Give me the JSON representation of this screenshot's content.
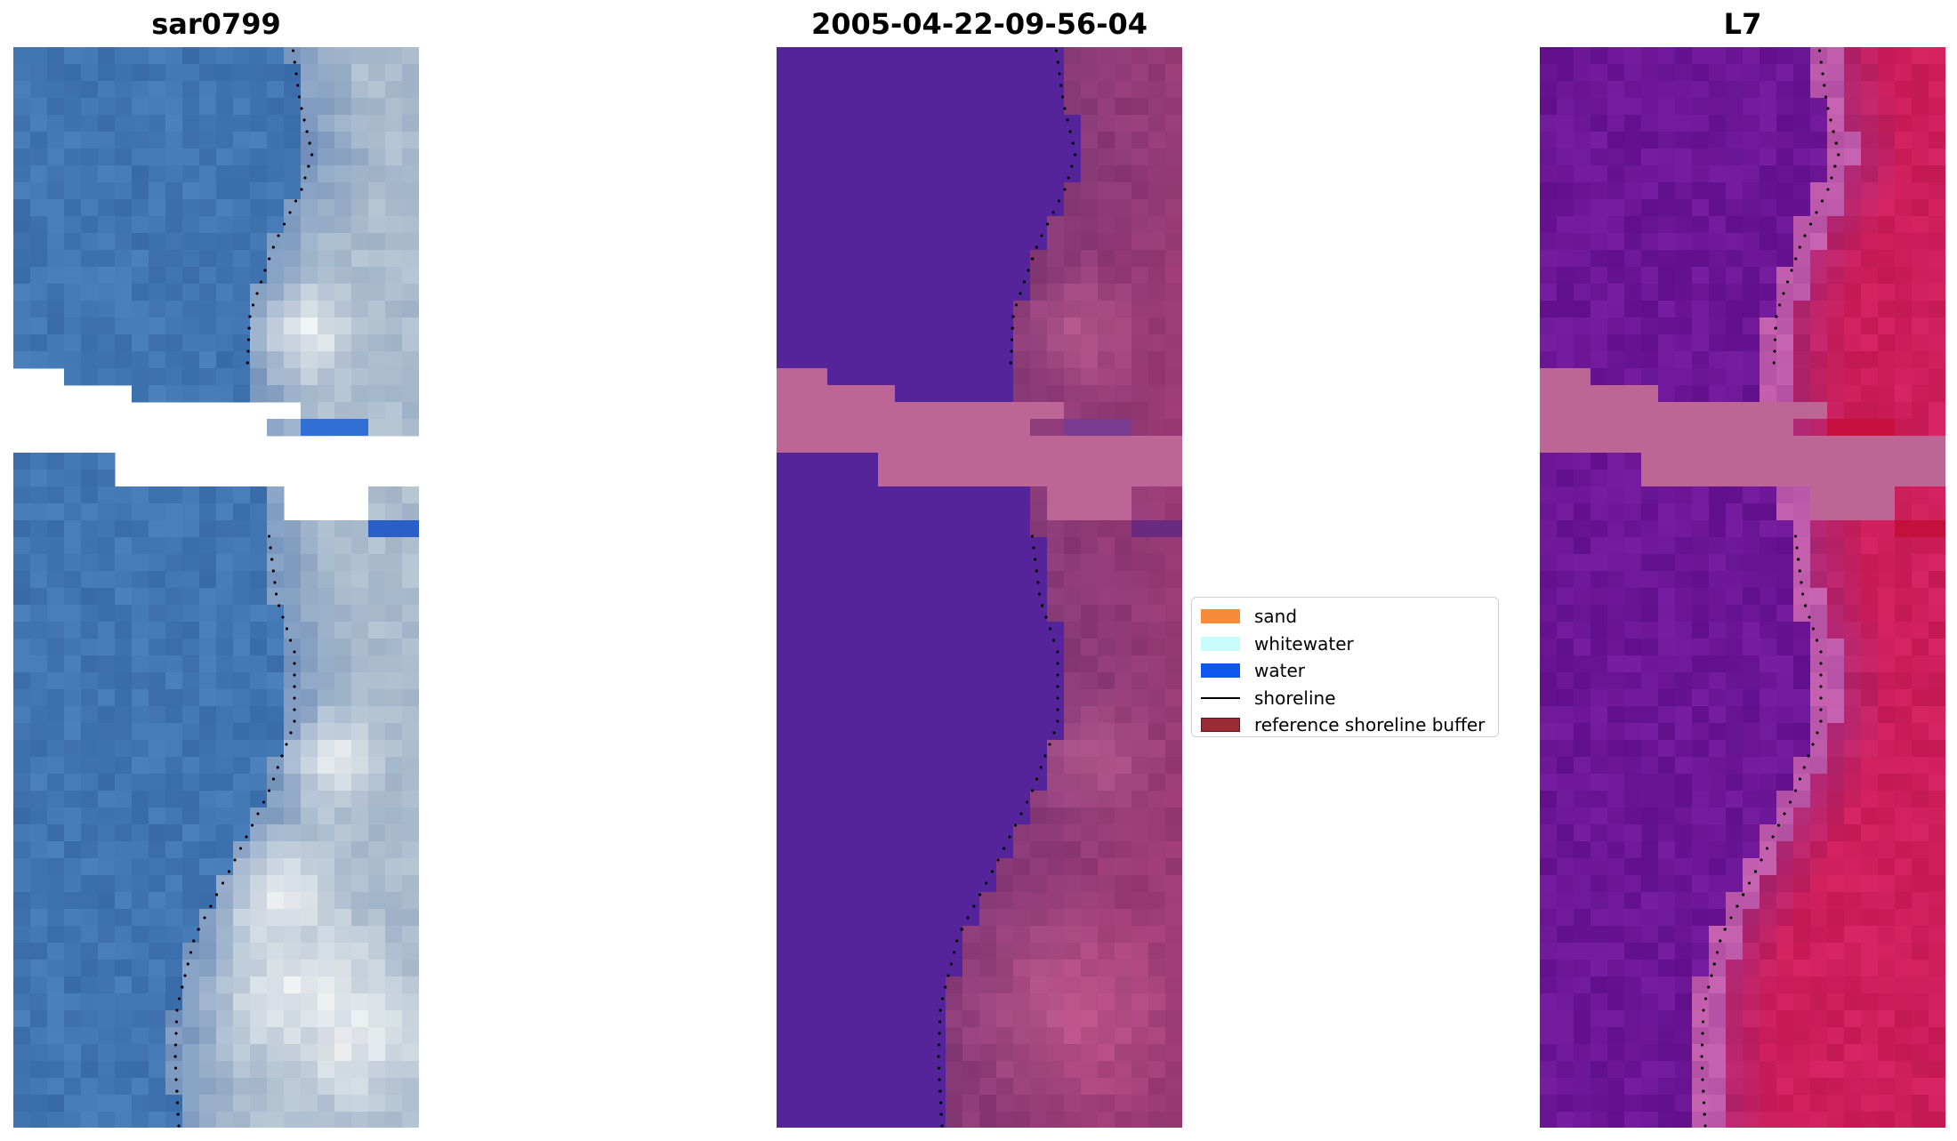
{
  "panels": [
    {
      "title": "sar0799",
      "style": "rgb"
    },
    {
      "title": "2005-04-22-09-56-04",
      "style": "classified"
    },
    {
      "title": "L7",
      "style": "index"
    }
  ],
  "legend": {
    "items": [
      {
        "label": "sand",
        "color": "#f68b3a",
        "kind": "patch"
      },
      {
        "label": "whitewater",
        "color": "#c8fcfa",
        "kind": "patch"
      },
      {
        "label": "water",
        "color": "#0d57f0",
        "kind": "patch"
      },
      {
        "label": "shoreline",
        "color": "#000000",
        "kind": "line"
      },
      {
        "label": "reference shoreline buffer",
        "color": "#9a2c36",
        "kind": "patch"
      }
    ]
  },
  "colors": {
    "nodata_fill": "#bd6595",
    "water_class": "#55249a",
    "shoreline_points": "#000000"
  }
}
